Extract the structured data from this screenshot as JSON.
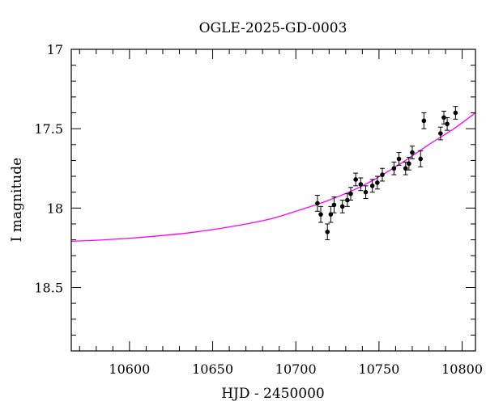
{
  "chart_data": {
    "type": "scatter",
    "title": "OGLE-2025-GD-0003",
    "xlabel": "HJD - 2450000",
    "ylabel": "I magnitude",
    "xlim": [
      10565,
      10808
    ],
    "ylim": [
      18.9,
      17.0
    ],
    "y_inverted": true,
    "grid": false,
    "x_ticks": [
      10600,
      10650,
      10700,
      10750,
      10800
    ],
    "x_tick_labels": [
      "10600",
      "10650",
      "10700",
      "10750",
      "10800"
    ],
    "y_ticks": [
      17,
      17.5,
      18,
      18.5
    ],
    "y_tick_labels": [
      "17",
      "17.5",
      "18",
      "18.5"
    ],
    "x_minor_step": 10,
    "y_minor_step": 0.1,
    "model_color": "#ff00ff",
    "point_color": "#000000",
    "model_curve": {
      "x": [
        10565,
        10600,
        10640,
        10680,
        10700,
        10720,
        10740,
        10760,
        10780,
        10795,
        10808
      ],
      "y": [
        18.21,
        18.19,
        18.15,
        18.08,
        18.02,
        17.95,
        17.86,
        17.74,
        17.6,
        17.5,
        17.4
      ]
    },
    "observations": {
      "x": [
        10713,
        10715,
        10719,
        10721,
        10723,
        10728,
        10731,
        10733,
        10736,
        10739,
        10742,
        10746,
        10749,
        10752,
        10759,
        10762,
        10766,
        10768,
        10770,
        10775,
        10777,
        10787,
        10789,
        10791,
        10796
      ],
      "y": [
        17.97,
        18.04,
        18.15,
        18.04,
        17.98,
        17.99,
        17.95,
        17.91,
        17.82,
        17.85,
        17.9,
        17.86,
        17.84,
        17.79,
        17.75,
        17.69,
        17.75,
        17.72,
        17.65,
        17.69,
        17.45,
        17.53,
        17.43,
        17.47,
        17.4
      ],
      "err": [
        0.05,
        0.05,
        0.05,
        0.05,
        0.05,
        0.04,
        0.04,
        0.04,
        0.04,
        0.04,
        0.04,
        0.04,
        0.04,
        0.04,
        0.04,
        0.04,
        0.04,
        0.04,
        0.04,
        0.05,
        0.05,
        0.04,
        0.04,
        0.04,
        0.04
      ]
    }
  }
}
